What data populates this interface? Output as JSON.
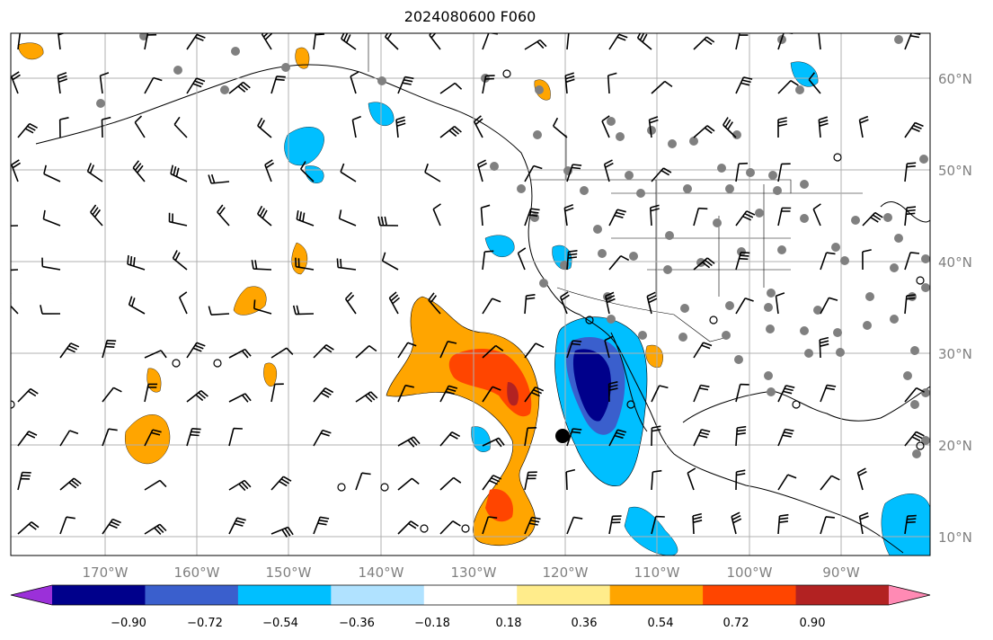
{
  "title": "2024080600 F060",
  "map": {
    "lon_range": [
      -180,
      -80
    ],
    "lat_range": [
      8,
      65
    ],
    "lon_labels": [
      "170°W",
      "160°W",
      "150°W",
      "140°W",
      "130°W",
      "120°W",
      "110°W",
      "100°W",
      "90°W"
    ],
    "lat_labels": [
      "60°N",
      "50°N",
      "40°N",
      "30°N",
      "20°N",
      "10°N"
    ],
    "gridlines": true
  },
  "colorbar": {
    "tick_labels": [
      "−0.90",
      "−0.72",
      "−0.54",
      "−0.36",
      "−0.18",
      "0.18",
      "0.36",
      "0.54",
      "0.72",
      "0.90"
    ],
    "colors": [
      "#9b30d9",
      "#00008b",
      "#3a5fcd",
      "#00bfff",
      "#b0e2ff",
      "#ffffff",
      "#ffec8b",
      "#ffa500",
      "#ff4500",
      "#b22222",
      "#ff8ab4"
    ],
    "extend": "both"
  }
}
